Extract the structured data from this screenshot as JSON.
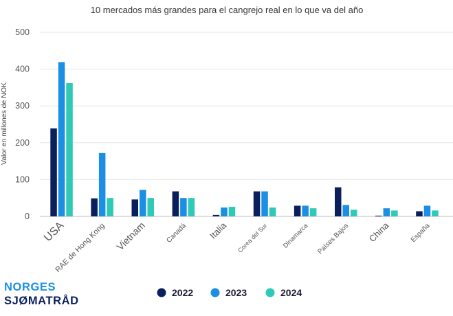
{
  "chart_data": {
    "type": "bar",
    "title": "10 mercados más grandes para el cangrejo real en lo que va del año",
    "ylabel": "Valor en millones de NOK",
    "xlabel": "",
    "ylim": [
      0,
      500
    ],
    "yticks": [
      0,
      100,
      200,
      300,
      400,
      500
    ],
    "grid": true,
    "legend_position": "bottom",
    "categories": [
      "USA",
      "RAE de Hong Kong",
      "Vietnam",
      "Canadá",
      "Italia",
      "Corea del Sur",
      "Dinamarca",
      "Países Bajos",
      "China",
      "España"
    ],
    "series": [
      {
        "name": "2022",
        "color": "#0b1f5c",
        "values": [
          239,
          49,
          46,
          68,
          4,
          68,
          29,
          79,
          2,
          14
        ]
      },
      {
        "name": "2023",
        "color": "#1a8fe3",
        "values": [
          419,
          172,
          72,
          50,
          24,
          68,
          29,
          31,
          22,
          29
        ]
      },
      {
        "name": "2024",
        "color": "#2ec9b7",
        "values": [
          362,
          50,
          50,
          50,
          26,
          24,
          22,
          18,
          16,
          16
        ]
      }
    ]
  },
  "logo": {
    "line1": "NORGES",
    "line2": "SJØMATRÅD"
  }
}
